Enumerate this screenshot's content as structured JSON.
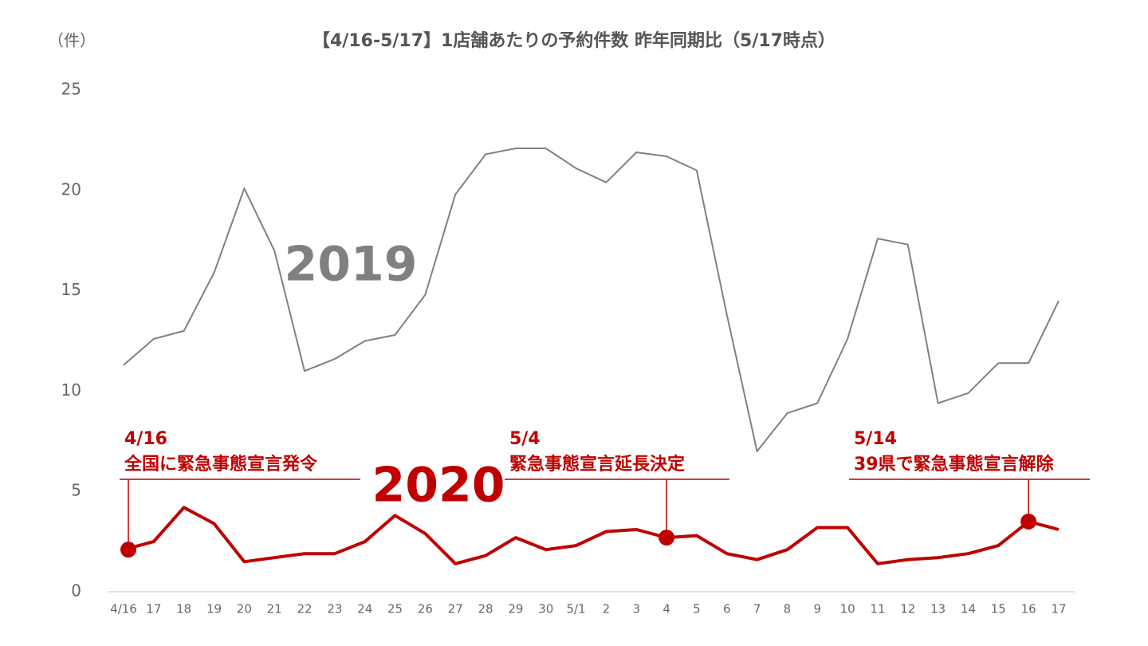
{
  "chart_data": {
    "type": "line",
    "title": "【4/16-5/17】1店舗あたりの予約件数 昨年同期比（5/17時点）",
    "y_label": "（件）",
    "categories": [
      "4/16",
      "17",
      "18",
      "19",
      "20",
      "21",
      "22",
      "23",
      "24",
      "25",
      "26",
      "27",
      "28",
      "29",
      "30",
      "5/1",
      "2",
      "3",
      "4",
      "5",
      "6",
      "7",
      "8",
      "9",
      "10",
      "11",
      "12",
      "13",
      "14",
      "15",
      "16",
      "17"
    ],
    "series": [
      {
        "name": "2019",
        "color": "#808080",
        "values": [
          11.3,
          12.6,
          13.0,
          15.9,
          20.1,
          17.0,
          11.0,
          11.6,
          12.5,
          12.8,
          14.8,
          19.8,
          21.8,
          22.1,
          22.1,
          21.1,
          20.4,
          21.9,
          21.7,
          21.0,
          13.8,
          7.0,
          8.9,
          9.4,
          12.6,
          17.6,
          17.3,
          9.4,
          9.9,
          11.4,
          11.4,
          14.5
        ]
      },
      {
        "name": "2020",
        "color": "#c00000",
        "values": [
          2.1,
          2.5,
          4.2,
          3.4,
          1.5,
          1.7,
          1.9,
          1.9,
          2.5,
          3.8,
          2.9,
          1.4,
          1.8,
          2.7,
          2.1,
          2.3,
          3.0,
          3.1,
          2.7,
          2.8,
          1.9,
          1.6,
          2.1,
          3.2,
          3.2,
          1.4,
          1.6,
          1.7,
          1.9,
          2.3,
          3.5,
          3.1
        ]
      }
    ],
    "annotations": [
      {
        "date": "4/16",
        "text": "全国に緊急事態宣言発令"
      },
      {
        "date": "5/4",
        "text": "緊急事態宣言延長決定"
      },
      {
        "date": "5/14",
        "text": "39県で緊急事態宣言解除"
      }
    ],
    "ylim": [
      0,
      25
    ],
    "yticks": [
      0,
      5,
      10,
      15,
      20,
      25
    ],
    "grid": false
  }
}
